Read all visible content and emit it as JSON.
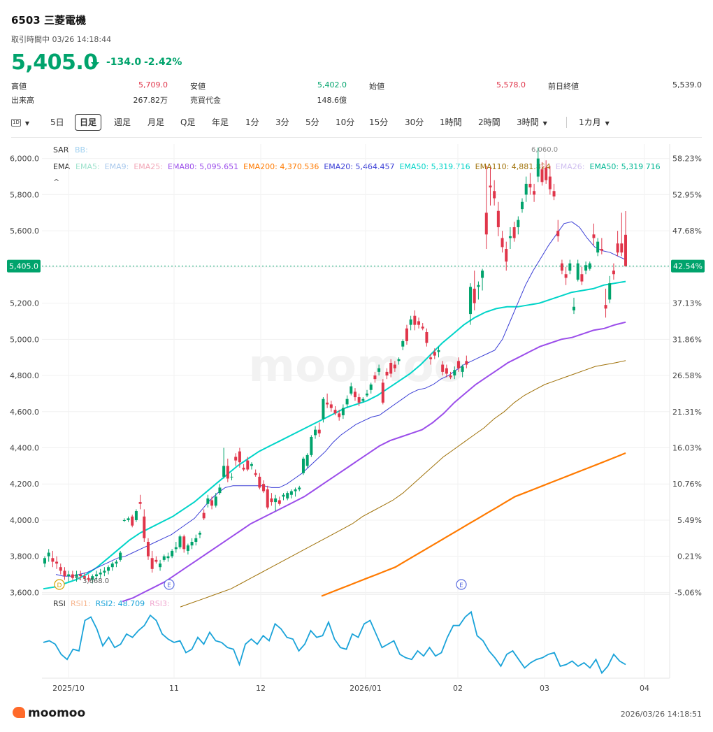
{
  "header": {
    "title": "6503  三菱電機",
    "status": "取引時間中 03/26 14:18:44",
    "price": "5,405.0",
    "change": "-134.0",
    "change_pct": "-2.42%",
    "trend_color": "#00a36c"
  },
  "stats": [
    {
      "label": "高値",
      "value": "5,709.0"
    },
    {
      "label": "安値",
      "value": "5,402.0"
    },
    {
      "label": "始値",
      "value": "5,578.0"
    },
    {
      "label": "前日終値",
      "value": "5,539.0"
    },
    {
      "label": "出来高",
      "value": "267.82万"
    },
    {
      "label": "売買代金",
      "value": "148.6億"
    }
  ],
  "toolbar": {
    "icon": "1D",
    "periods": [
      "5日",
      "日足",
      "週足",
      "月足",
      "Q足",
      "年足",
      "1分",
      "3分",
      "5分",
      "10分",
      "15分",
      "30分",
      "1時間",
      "2時間",
      "3時間"
    ],
    "active": "日足",
    "range": "1カ月"
  },
  "indicators": {
    "sar": "SAR",
    "bb": "BB:",
    "ema_label": "EMA",
    "ema": [
      {
        "text": "EMA5:",
        "color": "#9fe2cd"
      },
      {
        "text": "EMA9:",
        "color": "#a8c8ec"
      },
      {
        "text": "EMA25:",
        "color": "#f2a8b8"
      },
      {
        "text": "EMA80: 5,095.651",
        "color": "#9b4dea"
      },
      {
        "text": "EMA200: 4,370.536",
        "color": "#ff7a00"
      },
      {
        "text": "EMA20: 5,464.457",
        "color": "#3b3fd6"
      },
      {
        "text": "EMA50: 5,319.716",
        "color": "#00d4c8"
      },
      {
        "text": "EMA110: 4,881.824",
        "color": "#a0720a"
      },
      {
        "text": "EMA26:",
        "color": "#d0c0f0"
      },
      {
        "text": "EMA50: 5,319.716",
        "color": "#00b894"
      }
    ],
    "collapse": "^",
    "rsi_label": "RSI",
    "rsi": [
      {
        "text": "RSI1:",
        "color": "#f7b48c"
      },
      {
        "text": "RSI2: 48.709",
        "color": "#1aa3d9"
      },
      {
        "text": "RSI3:",
        "color": "#f0a8d0"
      }
    ]
  },
  "chart_data": {
    "type": "candlestick",
    "y_ticks": [
      "6,000.0",
      "5,800.0",
      "5,600.0",
      "5,400.0",
      "5,200.0",
      "5,000.0",
      "4,800.0",
      "4,600.0",
      "4,400.0",
      "4,200.0",
      "4,000.0",
      "3,800.0",
      "3,600.0"
    ],
    "y_tick_values": [
      6000,
      5800,
      5600,
      5400,
      5200,
      5000,
      4800,
      4600,
      4400,
      4200,
      4000,
      3800,
      3600
    ],
    "pct_ticks": [
      "58.23%",
      "52.95%",
      "47.68%",
      "42.54%",
      "37.13%",
      "31.86%",
      "26.58%",
      "21.31%",
      "16.03%",
      "10.76%",
      "5.49%",
      "0.21%",
      "-5.06%"
    ],
    "x_ticks": [
      "2025/10",
      "11",
      "12",
      "2026/01",
      "02",
      "03",
      "04"
    ],
    "current_price_label": "5,405.0",
    "current_pct_label": "42.54%",
    "current_price": 5405,
    "ylim": [
      3590,
      6080
    ],
    "annotations": {
      "high": "6,060.0",
      "low": "3,668.0",
      "markers": [
        "D",
        "E",
        "E"
      ]
    },
    "candles": [
      [
        3760,
        3800,
        3740,
        3790
      ],
      [
        3800,
        3840,
        3770,
        3820
      ],
      [
        3790,
        3830,
        3740,
        3770
      ],
      [
        3770,
        3800,
        3730,
        3760
      ],
      [
        3740,
        3760,
        3700,
        3720
      ],
      [
        3720,
        3740,
        3670,
        3690
      ],
      [
        3690,
        3720,
        3660,
        3700
      ],
      [
        3700,
        3720,
        3670,
        3680
      ],
      [
        3680,
        3720,
        3660,
        3700
      ],
      [
        3700,
        3720,
        3670,
        3690
      ],
      [
        3690,
        3710,
        3670,
        3680
      ],
      [
        3680,
        3700,
        3660,
        3670
      ],
      [
        3670,
        3700,
        3650,
        3690
      ],
      [
        3690,
        3720,
        3670,
        3700
      ],
      [
        3700,
        3730,
        3680,
        3710
      ],
      [
        3710,
        3740,
        3690,
        3720
      ],
      [
        3720,
        3750,
        3700,
        3740
      ],
      [
        3740,
        3770,
        3720,
        3760
      ],
      [
        3760,
        3780,
        3740,
        3770
      ],
      [
        3780,
        3830,
        3770,
        3820
      ],
      [
        4000,
        4010,
        3990,
        4000
      ],
      [
        4000,
        4020,
        3990,
        4010
      ],
      [
        4020,
        4030,
        3960,
        3970
      ],
      [
        4000,
        4060,
        3990,
        4050
      ],
      [
        4100,
        4140,
        4060,
        4090
      ],
      [
        4020,
        4060,
        3880,
        3900
      ],
      [
        3880,
        3900,
        3780,
        3800
      ],
      [
        3790,
        3830,
        3710,
        3730
      ],
      [
        3780,
        3800,
        3760,
        3770
      ],
      [
        3740,
        3780,
        3720,
        3760
      ],
      [
        3780,
        3810,
        3770,
        3800
      ],
      [
        3790,
        3820,
        3770,
        3800
      ],
      [
        3800,
        3840,
        3790,
        3830
      ],
      [
        3840,
        3880,
        3820,
        3850
      ],
      [
        3850,
        3920,
        3840,
        3910
      ],
      [
        3910,
        3920,
        3820,
        3840
      ],
      [
        3830,
        3870,
        3810,
        3860
      ],
      [
        3860,
        3900,
        3840,
        3880
      ],
      [
        3880,
        3920,
        3860,
        3900
      ],
      [
        3920,
        3940,
        3900,
        3930
      ],
      [
        4040,
        4060,
        4000,
        4010
      ],
      [
        4090,
        4140,
        4070,
        4120
      ],
      [
        4110,
        4130,
        4060,
        4080
      ],
      [
        4080,
        4150,
        4070,
        4130
      ],
      [
        4150,
        4200,
        4140,
        4180
      ],
      [
        4240,
        4400,
        4230,
        4300
      ],
      [
        4300,
        4340,
        4210,
        4230
      ],
      [
        4240,
        4260,
        4220,
        4240
      ],
      [
        4350,
        4370,
        4300,
        4330
      ],
      [
        4380,
        4400,
        4290,
        4320
      ],
      [
        4290,
        4310,
        4270,
        4280
      ],
      [
        4330,
        4350,
        4270,
        4280
      ],
      [
        4300,
        4320,
        4280,
        4310
      ],
      [
        4260,
        4280,
        4240,
        4250
      ],
      [
        4240,
        4260,
        4170,
        4180
      ],
      [
        4200,
        4220,
        4150,
        4160
      ],
      [
        4170,
        4190,
        4060,
        4070
      ],
      [
        4120,
        4150,
        4080,
        4100
      ],
      [
        4100,
        4140,
        4050,
        4120
      ],
      [
        4110,
        4130,
        4080,
        4090
      ],
      [
        4130,
        4150,
        4110,
        4140
      ],
      [
        4120,
        4160,
        4110,
        4150
      ],
      [
        4140,
        4170,
        4120,
        4160
      ],
      [
        4160,
        4180,
        4130,
        4170
      ],
      [
        4170,
        4190,
        4160,
        4180
      ],
      [
        4260,
        4350,
        4250,
        4340
      ],
      [
        4300,
        4370,
        4290,
        4360
      ],
      [
        4360,
        4470,
        4350,
        4460
      ],
      [
        4470,
        4520,
        4450,
        4500
      ],
      [
        4500,
        4540,
        4460,
        4480
      ],
      [
        4560,
        4680,
        4540,
        4670
      ],
      [
        4650,
        4700,
        4620,
        4640
      ],
      [
        4640,
        4660,
        4600,
        4620
      ],
      [
        4610,
        4630,
        4580,
        4590
      ],
      [
        4590,
        4610,
        4550,
        4570
      ],
      [
        4580,
        4640,
        4560,
        4620
      ],
      [
        4640,
        4690,
        4620,
        4670
      ],
      [
        4700,
        4760,
        4690,
        4740
      ],
      [
        4710,
        4730,
        4660,
        4680
      ],
      [
        4680,
        4700,
        4630,
        4650
      ],
      [
        4660,
        4680,
        4650,
        4670
      ],
      [
        4690,
        4720,
        4680,
        4700
      ],
      [
        4720,
        4760,
        4700,
        4750
      ],
      [
        4800,
        4820,
        4760,
        4780
      ],
      [
        4820,
        4860,
        4800,
        4840
      ],
      [
        4760,
        4780,
        4640,
        4650
      ],
      [
        4820,
        4840,
        4780,
        4800
      ],
      [
        4870,
        4890,
        4790,
        4810
      ],
      [
        4860,
        4880,
        4820,
        4840
      ],
      [
        4880,
        4900,
        4860,
        4890
      ],
      [
        4960,
        5000,
        4940,
        4990
      ],
      [
        5060,
        5080,
        4970,
        4990
      ],
      [
        5080,
        5130,
        5050,
        5110
      ],
      [
        5130,
        5160,
        5050,
        5080
      ],
      [
        5100,
        5120,
        5060,
        5080
      ],
      [
        5070,
        5090,
        5050,
        5060
      ],
      [
        5040,
        5060,
        4960,
        4980
      ],
      [
        4900,
        4920,
        4860,
        4890
      ],
      [
        4930,
        4950,
        4890,
        4910
      ],
      [
        4930,
        4960,
        4900,
        4940
      ],
      [
        4860,
        4880,
        4800,
        4820
      ],
      [
        4840,
        4860,
        4790,
        4810
      ],
      [
        4800,
        4820,
        4780,
        4790
      ],
      [
        4800,
        4850,
        4780,
        4830
      ],
      [
        4880,
        4900,
        4820,
        4840
      ],
      [
        4820,
        4860,
        4790,
        4850
      ],
      [
        4880,
        4910,
        4840,
        4860
      ],
      [
        5140,
        5310,
        5080,
        5290
      ],
      [
        5280,
        5380,
        5160,
        5200
      ],
      [
        5290,
        5320,
        5220,
        5300
      ],
      [
        5340,
        5390,
        5270,
        5380
      ],
      [
        5700,
        5960,
        5500,
        5580
      ],
      [
        5850,
        5950,
        5740,
        5840
      ],
      [
        5820,
        5880,
        5740,
        5780
      ],
      [
        5710,
        5760,
        5570,
        5620
      ],
      [
        5560,
        5600,
        5480,
        5510
      ],
      [
        5500,
        5540,
        5380,
        5430
      ],
      [
        5560,
        5620,
        5500,
        5570
      ],
      [
        5620,
        5650,
        5540,
        5560
      ],
      [
        5620,
        5680,
        5580,
        5660
      ],
      [
        5720,
        5780,
        5700,
        5760
      ],
      [
        5800,
        5900,
        5760,
        5860
      ],
      [
        5860,
        5920,
        5800,
        5840
      ],
      [
        5820,
        5860,
        5760,
        5800
      ],
      [
        5900,
        6060,
        5870,
        6000
      ],
      [
        5940,
        5980,
        5850,
        5870
      ],
      [
        5950,
        5990,
        5860,
        5880
      ],
      [
        5900,
        5960,
        5800,
        5830
      ],
      [
        5820,
        5860,
        5770,
        5790
      ],
      [
        5600,
        5660,
        5540,
        5570
      ],
      [
        5420,
        5440,
        5360,
        5380
      ],
      [
        5360,
        5400,
        5300,
        5340
      ],
      [
        5380,
        5440,
        5360,
        5420
      ],
      [
        5160,
        5230,
        5140,
        5180
      ],
      [
        5330,
        5440,
        5320,
        5420
      ],
      [
        5360,
        5400,
        5300,
        5320
      ],
      [
        5380,
        5430,
        5360,
        5410
      ],
      [
        5390,
        5430,
        5380,
        5420
      ],
      [
        5580,
        5640,
        5520,
        5560
      ],
      [
        5480,
        5560,
        5460,
        5540
      ],
      [
        5500,
        5560,
        5470,
        5490
      ],
      [
        5190,
        5280,
        5120,
        5170
      ],
      [
        5220,
        5350,
        5200,
        5310
      ],
      [
        5380,
        5420,
        5330,
        5360
      ],
      [
        5530,
        5600,
        5460,
        5480
      ],
      [
        5530,
        5700,
        5460,
        5480
      ],
      [
        5578,
        5709,
        5402,
        5405
      ]
    ],
    "ema20": [
      3700,
      3690,
      3690,
      3700,
      3710,
      3730,
      3750,
      3770,
      3790,
      3800,
      3820,
      3840,
      3860,
      3880,
      3900,
      3920,
      3950,
      3980,
      4010,
      4060,
      4110,
      4150,
      4180,
      4190,
      4190,
      4190,
      4190,
      4190,
      4180,
      4180,
      4200,
      4230,
      4260,
      4300,
      4340,
      4380,
      4430,
      4470,
      4500,
      4530,
      4550,
      4570,
      4580,
      4610,
      4640,
      4670,
      4700,
      4720,
      4730,
      4750,
      4780,
      4800,
      4830,
      4860,
      4880,
      4900,
      4920,
      4940,
      5000,
      5100,
      5200,
      5300,
      5380,
      5450,
      5520,
      5580,
      5640,
      5650,
      5620,
      5560,
      5510,
      5490,
      5480,
      5460,
      5440
    ],
    "ema50": [
      3620,
      3630,
      3650,
      3670,
      3700,
      3740,
      3790,
      3840,
      3890,
      3930,
      3960,
      3990,
      4020,
      4060,
      4100,
      4150,
      4200,
      4250,
      4300,
      4340,
      4380,
      4410,
      4440,
      4470,
      4500,
      4530,
      4560,
      4590,
      4620,
      4640,
      4660,
      4690,
      4730,
      4770,
      4810,
      4860,
      4920,
      4980,
      5030,
      5080,
      5120,
      5150,
      5170,
      5180,
      5180,
      5190,
      5200,
      5220,
      5240,
      5260,
      5270,
      5280,
      5300,
      5310,
      5320
    ],
    "ema80": [
      3550,
      3570,
      3600,
      3630,
      3660,
      3700,
      3740,
      3780,
      3820,
      3860,
      3900,
      3940,
      3980,
      4010,
      4040,
      4070,
      4100,
      4130,
      4170,
      4210,
      4250,
      4290,
      4330,
      4370,
      4410,
      4440,
      4460,
      4480,
      4500,
      4540,
      4590,
      4650,
      4700,
      4750,
      4790,
      4830,
      4870,
      4900,
      4930,
      4960,
      4980,
      5000,
      5010,
      5030,
      5050,
      5060,
      5080,
      5095
    ],
    "ema110": [
      3520,
      3540,
      3560,
      3580,
      3600,
      3620,
      3650,
      3680,
      3710,
      3740,
      3770,
      3800,
      3830,
      3860,
      3890,
      3920,
      3950,
      3980,
      4020,
      4050,
      4080,
      4110,
      4150,
      4200,
      4250,
      4300,
      4350,
      4390,
      4430,
      4470,
      4510,
      4560,
      4600,
      4650,
      4690,
      4720,
      4750,
      4770,
      4790,
      4810,
      4830,
      4850,
      4860,
      4870,
      4882
    ],
    "ema200": [
      3580,
      3600,
      3620,
      3640,
      3660,
      3680,
      3700,
      3720,
      3740,
      3770,
      3800,
      3830,
      3860,
      3890,
      3920,
      3950,
      3980,
      4010,
      4040,
      4070,
      4100,
      4130,
      4150,
      4170,
      4190,
      4210,
      4230,
      4250,
      4270,
      4290,
      4310,
      4330,
      4350,
      4371
    ],
    "rsi": [
      54,
      55,
      53,
      47,
      44,
      50,
      49,
      67,
      69,
      62,
      52,
      57,
      51,
      53,
      59,
      57,
      61,
      64,
      70,
      67,
      59,
      56,
      54,
      55,
      48,
      50,
      57,
      53,
      60,
      55,
      54,
      51,
      50,
      41,
      53,
      56,
      53,
      58,
      55,
      65,
      62,
      57,
      56,
      49,
      53,
      61,
      57,
      58,
      66,
      56,
      51,
      50,
      59,
      57,
      65,
      67,
      59,
      51,
      53,
      55,
      47,
      45,
      44,
      49,
      46,
      51,
      46,
      48,
      57,
      64,
      64,
      69,
      72,
      58,
      55,
      49,
      45,
      40,
      47,
      49,
      44,
      39,
      42,
      44,
      45,
      47,
      48,
      40,
      41,
      43,
      40,
      42,
      39,
      44,
      36,
      40,
      47,
      43,
      41
    ]
  },
  "footer": {
    "brand": "moomoo",
    "time": "2026/03/26 14:18:51"
  }
}
